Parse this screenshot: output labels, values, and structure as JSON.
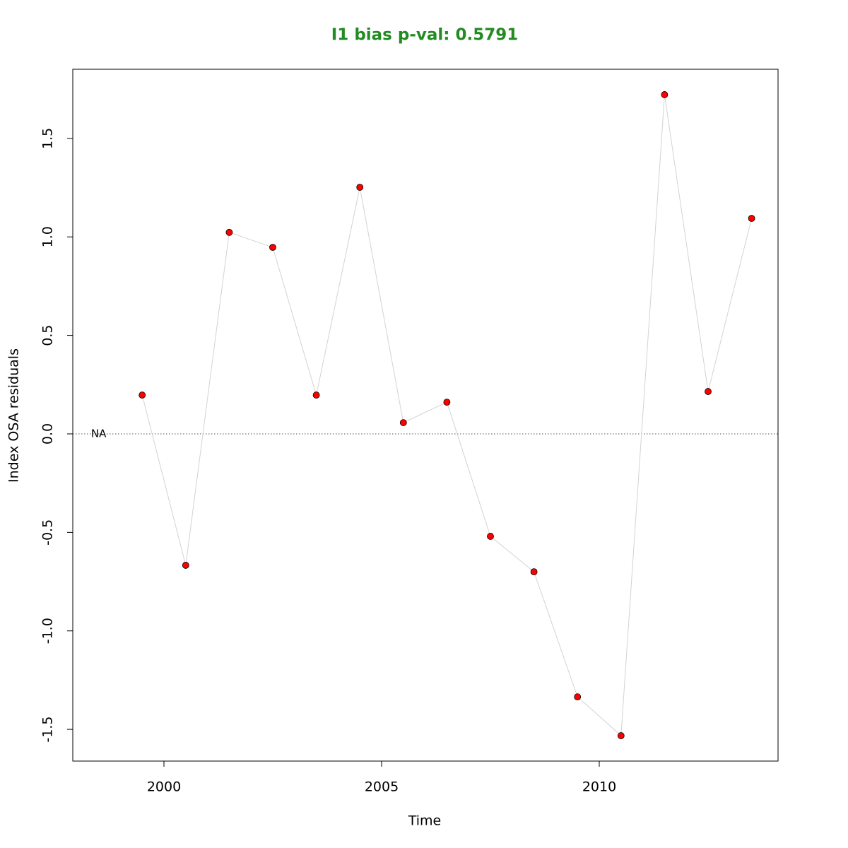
{
  "chart_data": {
    "type": "line",
    "title": "I1 bias p-val: 0.5791",
    "x_label": "Time",
    "y_label": "Index OSA residuals",
    "x": [
      1998.5,
      1999.5,
      2000.5,
      2001.5,
      2002.5,
      2003.5,
      2004.5,
      2005.5,
      2006.5,
      2007.5,
      2008.5,
      2009.5,
      2010.5,
      2011.5,
      2012.5,
      2013.5
    ],
    "series": [
      {
        "name": "I1",
        "color": "#ff0000",
        "line_color": "#d3d3d3",
        "values": [
          null,
          0.197,
          -0.667,
          1.023,
          0.947,
          0.197,
          1.252,
          0.057,
          0.161,
          -0.52,
          -0.7,
          -1.335,
          -1.532,
          1.722,
          0.215,
          1.094
        ]
      }
    ],
    "annotations": [
      {
        "text": "NA",
        "x": 1998.5,
        "y": 0
      }
    ],
    "hline": 0,
    "xlim": [
      1997.906,
      2014.107
    ],
    "ylim": [
      -1.661,
      1.851
    ],
    "xticks": [
      2000,
      2005,
      2010
    ],
    "yticks": [
      -1.5,
      {
        "value": -1.0,
        "label": "-1.0"
      },
      -0.5,
      {
        "value": 0,
        "label": "0.0"
      },
      0.5,
      {
        "value": 1.0,
        "label": "1.0"
      },
      1.5
    ]
  }
}
